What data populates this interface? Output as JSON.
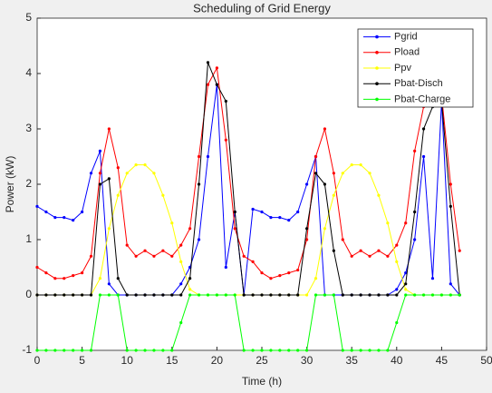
{
  "chart_data": {
    "type": "line",
    "title": "Scheduling of Grid Energy",
    "xlabel": "Time (h)",
    "ylabel": "Power (kW)",
    "x": [
      0,
      1,
      2,
      3,
      4,
      5,
      6,
      7,
      8,
      9,
      10,
      11,
      12,
      13,
      14,
      15,
      16,
      17,
      18,
      19,
      20,
      21,
      22,
      23,
      24,
      25,
      26,
      27,
      28,
      29,
      30,
      31,
      32,
      33,
      34,
      35,
      36,
      37,
      38,
      39,
      40,
      41,
      42,
      43,
      44,
      45,
      46,
      47
    ],
    "series": [
      {
        "name": "Pgrid",
        "color": "#0000ff",
        "values": [
          1.6,
          1.5,
          1.4,
          1.4,
          1.35,
          1.5,
          2.2,
          2.6,
          0.2,
          0,
          0,
          0,
          0,
          0,
          0,
          0,
          0.2,
          0.5,
          1.0,
          2.5,
          3.8,
          0.5,
          1.5,
          0,
          1.55,
          1.5,
          1.4,
          1.4,
          1.35,
          1.5,
          2.0,
          2.5,
          0,
          0,
          0,
          0,
          0,
          0,
          0,
          0,
          0.1,
          0.4,
          1.0,
          2.5,
          0.3,
          3.5,
          0.2,
          0
        ]
      },
      {
        "name": "Pload",
        "color": "#ff0000",
        "values": [
          0.5,
          0.4,
          0.3,
          0.3,
          0.35,
          0.4,
          0.7,
          2.2,
          3.0,
          2.3,
          0.9,
          0.7,
          0.8,
          0.7,
          0.8,
          0.7,
          0.9,
          1.2,
          2.5,
          3.8,
          4.1,
          2.8,
          1.2,
          0.7,
          0.6,
          0.4,
          0.3,
          0.35,
          0.4,
          0.45,
          1.0,
          2.5,
          3.0,
          2.2,
          1.0,
          0.7,
          0.8,
          0.7,
          0.8,
          0.7,
          0.9,
          1.3,
          2.6,
          3.4,
          4.0,
          3.6,
          2.0,
          0.8
        ]
      },
      {
        "name": "Ppv",
        "color": "#ffff00",
        "values": [
          0,
          0,
          0,
          0,
          0,
          0,
          0,
          0.3,
          1.2,
          1.8,
          2.2,
          2.35,
          2.35,
          2.2,
          1.8,
          1.3,
          0.6,
          0.1,
          0,
          0,
          0,
          0,
          0,
          0,
          0,
          0,
          0,
          0,
          0,
          0,
          0,
          0.3,
          1.2,
          1.8,
          2.2,
          2.35,
          2.35,
          2.2,
          1.8,
          1.3,
          0.6,
          0.1,
          0,
          0,
          0,
          0,
          0,
          0
        ]
      },
      {
        "name": "Pbat-Disch",
        "color": "#000000",
        "values": [
          0,
          0,
          0,
          0,
          0,
          0,
          0,
          2.0,
          2.1,
          0.3,
          0,
          0,
          0,
          0,
          0,
          0,
          0,
          0.3,
          2.0,
          4.2,
          3.8,
          3.5,
          1.5,
          0,
          0,
          0,
          0,
          0,
          0,
          0,
          1.2,
          2.2,
          2.0,
          0.8,
          0,
          0,
          0,
          0,
          0,
          0,
          0,
          0.2,
          1.5,
          3.0,
          3.4,
          3.5,
          1.6,
          0
        ]
      },
      {
        "name": "Pbat-Charge",
        "color": "#00ff00",
        "values": [
          -1,
          -1,
          -1,
          -1,
          -1,
          -1,
          -1,
          0,
          0,
          0,
          -1,
          -1,
          -1,
          -1,
          -1,
          -1,
          -0.5,
          0,
          0,
          0,
          0,
          0,
          0,
          -1,
          -1,
          -1,
          -1,
          -1,
          -1,
          -1,
          -1,
          0,
          0,
          0,
          -1,
          -1,
          -1,
          -1,
          -1,
          -1,
          -0.5,
          0,
          0,
          0,
          0,
          0,
          0,
          0
        ]
      }
    ],
    "xlim": [
      0,
      50
    ],
    "xticks": [
      0,
      5,
      10,
      15,
      20,
      25,
      30,
      35,
      40,
      45,
      50
    ],
    "ylim": [
      -1,
      5
    ],
    "yticks": [
      -1,
      0,
      1,
      2,
      3,
      4,
      5
    ],
    "legend": "northeast"
  }
}
